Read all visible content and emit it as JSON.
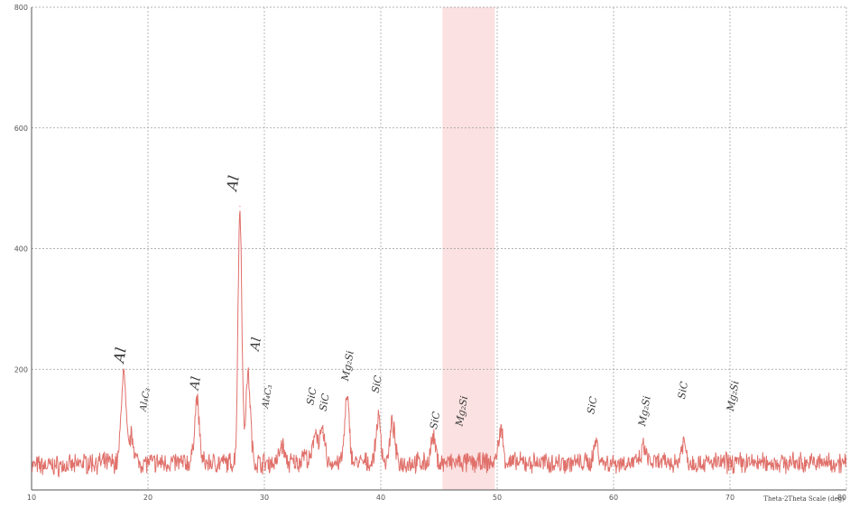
{
  "chart_data": {
    "type": "line",
    "title": "",
    "xlabel": "Theta-2Theta Scale (deg)",
    "ylabel": "",
    "xlim": [
      10,
      80
    ],
    "ylim": [
      0,
      800
    ],
    "x_ticks": [
      "10",
      "20",
      "30",
      "40",
      "50",
      "60",
      "70",
      "80"
    ],
    "y_ticks": [
      "200",
      "400",
      "600",
      "800"
    ],
    "grid": true,
    "colors": {
      "trace": "#e0706a",
      "grid": "#9a9a9a",
      "band": "#f7c9c9"
    },
    "series": [
      {
        "baseline": 45,
        "peaks": [
          {
            "x": 17.9,
            "y": 195
          },
          {
            "x": 18.6,
            "y": 90
          },
          {
            "x": 24.2,
            "y": 150
          },
          {
            "x": 27.9,
            "y": 470
          },
          {
            "x": 28.6,
            "y": 190
          },
          {
            "x": 31.5,
            "y": 75
          },
          {
            "x": 33.4,
            "y": 60
          },
          {
            "x": 34.4,
            "y": 100
          },
          {
            "x": 35.0,
            "y": 95
          },
          {
            "x": 37.1,
            "y": 150
          },
          {
            "x": 39.8,
            "y": 120
          },
          {
            "x": 41.0,
            "y": 110
          },
          {
            "x": 44.5,
            "y": 85
          },
          {
            "x": 50.3,
            "y": 100
          },
          {
            "x": 58.5,
            "y": 80
          },
          {
            "x": 62.6,
            "y": 70
          },
          {
            "x": 66.0,
            "y": 80
          }
        ]
      }
    ],
    "annotations": [
      {
        "text": "Al",
        "x": 17.9,
        "y": 210,
        "size": 16,
        "rotate": -80
      },
      {
        "text": "Al₄C₃",
        "x": 19.8,
        "y": 130,
        "size": 10,
        "rotate": -80
      },
      {
        "text": "Al",
        "x": 24.3,
        "y": 165,
        "size": 14,
        "rotate": -80
      },
      {
        "text": "Al",
        "x": 27.6,
        "y": 495,
        "size": 16,
        "rotate": -80
      },
      {
        "text": "Al",
        "x": 29.5,
        "y": 230,
        "size": 14,
        "rotate": -80
      },
      {
        "text": "Al₄C₃",
        "x": 30.3,
        "y": 135,
        "size": 10,
        "rotate": -80
      },
      {
        "text": "SiC",
        "x": 34.2,
        "y": 140,
        "size": 11,
        "rotate": -80
      },
      {
        "text": "SiC",
        "x": 35.3,
        "y": 130,
        "size": 11,
        "rotate": -80
      },
      {
        "text": "Mg₂Si",
        "x": 37.2,
        "y": 180,
        "size": 11,
        "rotate": -80
      },
      {
        "text": "SiC",
        "x": 39.8,
        "y": 160,
        "size": 11,
        "rotate": -80
      },
      {
        "text": "SiC",
        "x": 44.8,
        "y": 100,
        "size": 11,
        "rotate": -80
      },
      {
        "text": "Mg₂Si",
        "x": 47.0,
        "y": 105,
        "size": 11,
        "rotate": -80
      },
      {
        "text": "SiC",
        "x": 58.3,
        "y": 125,
        "size": 11,
        "rotate": -80
      },
      {
        "text": "Mg₂Si",
        "x": 62.7,
        "y": 105,
        "size": 11,
        "rotate": -80
      },
      {
        "text": "SiC",
        "x": 66.1,
        "y": 150,
        "size": 11,
        "rotate": -80
      },
      {
        "text": "Mg₂Si",
        "x": 70.3,
        "y": 130,
        "size": 11,
        "rotate": -80
      }
    ]
  }
}
